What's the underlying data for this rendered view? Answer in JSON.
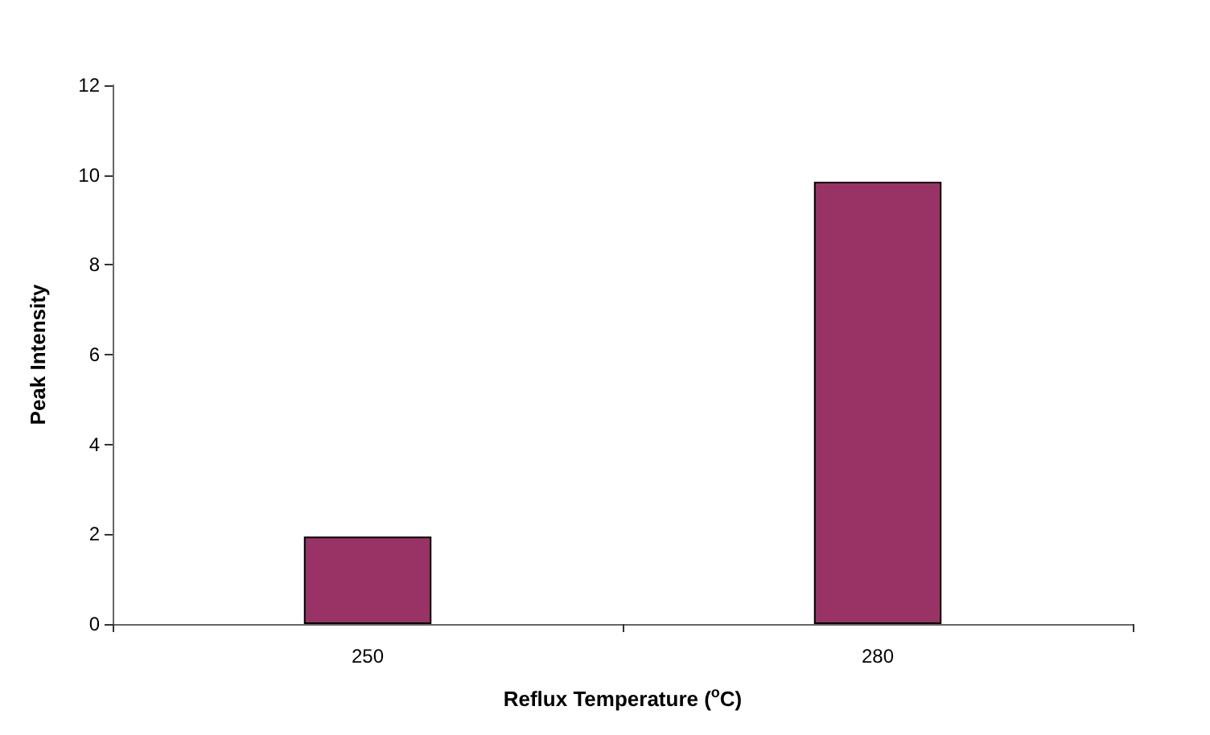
{
  "chart_data": {
    "type": "bar",
    "xlabel": "Reflux Temperature ($^{o}$C)",
    "ylabel": "Peak Intensity",
    "categories": [
      "250",
      "280"
    ],
    "values": [
      1.95,
      9.85
    ],
    "color": "#993366",
    "ylim": [
      0,
      12
    ],
    "yticks": [
      0,
      2,
      4,
      6,
      8,
      10,
      12
    ],
    "grid": false
  }
}
